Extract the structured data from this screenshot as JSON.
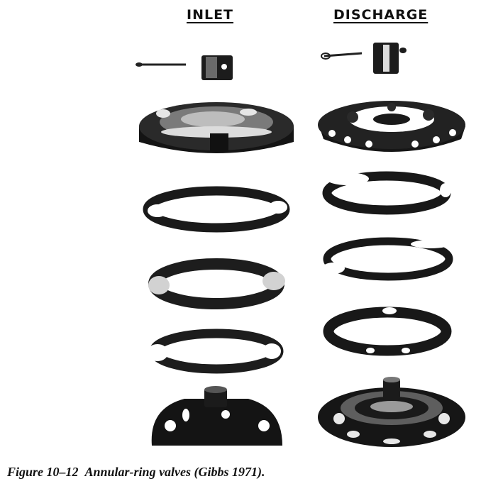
{
  "figure": {
    "columns": [
      {
        "key": "inlet",
        "title": "INLET"
      },
      {
        "key": "discharge",
        "title": "DISCHARGE"
      }
    ],
    "caption": {
      "number": "Figure 10–12",
      "text": "Annular-ring valves (Gibbs 1971)."
    }
  }
}
